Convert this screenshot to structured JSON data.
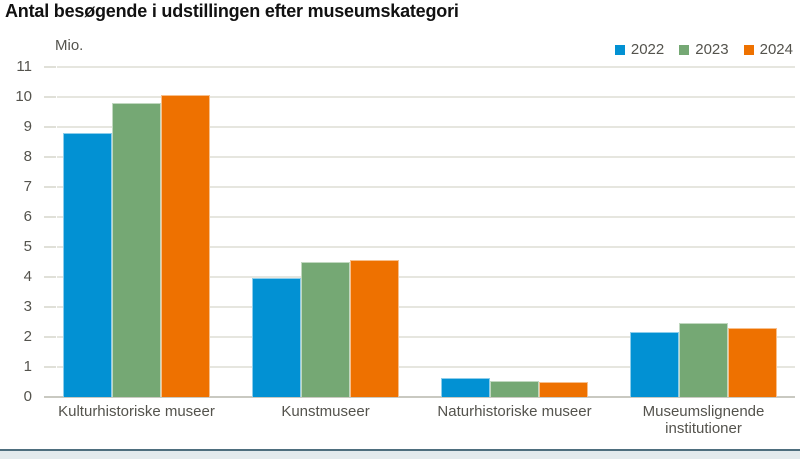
{
  "header": {
    "title": "Antal besøgende i udstillingen efter museumskategori"
  },
  "chart_data": {
    "type": "bar",
    "title": "Antal besøgende i udstillingen efter museumskategori",
    "unit_label": "Mio.",
    "categories": [
      "Kulturhistoriske museer",
      "Kunstmuseer",
      "Naturhistoriske museer",
      "Museumslignende institutioner"
    ],
    "series": [
      {
        "name": "2022",
        "color": "#0291d3",
        "values": [
          8.8,
          3.95,
          0.62,
          2.15
        ]
      },
      {
        "name": "2023",
        "color": "#75a874",
        "values": [
          9.8,
          4.5,
          0.53,
          2.45
        ]
      },
      {
        "name": "2024",
        "color": "#ee7100",
        "values": [
          10.05,
          4.55,
          0.51,
          2.3
        ]
      }
    ],
    "ylim": [
      0,
      11
    ],
    "yticks": [
      0,
      1,
      2,
      3,
      4,
      5,
      6,
      7,
      8,
      9,
      10,
      11
    ],
    "grid": true,
    "legend_position": "top-right",
    "styles": {
      "gridline_color": "#e6e6df",
      "baseline_color": "#c9c9c1",
      "axis_text_color": "#54534d",
      "footer_line_color": "#4e6e7e",
      "footer_band_color": "#e3eaed"
    }
  }
}
